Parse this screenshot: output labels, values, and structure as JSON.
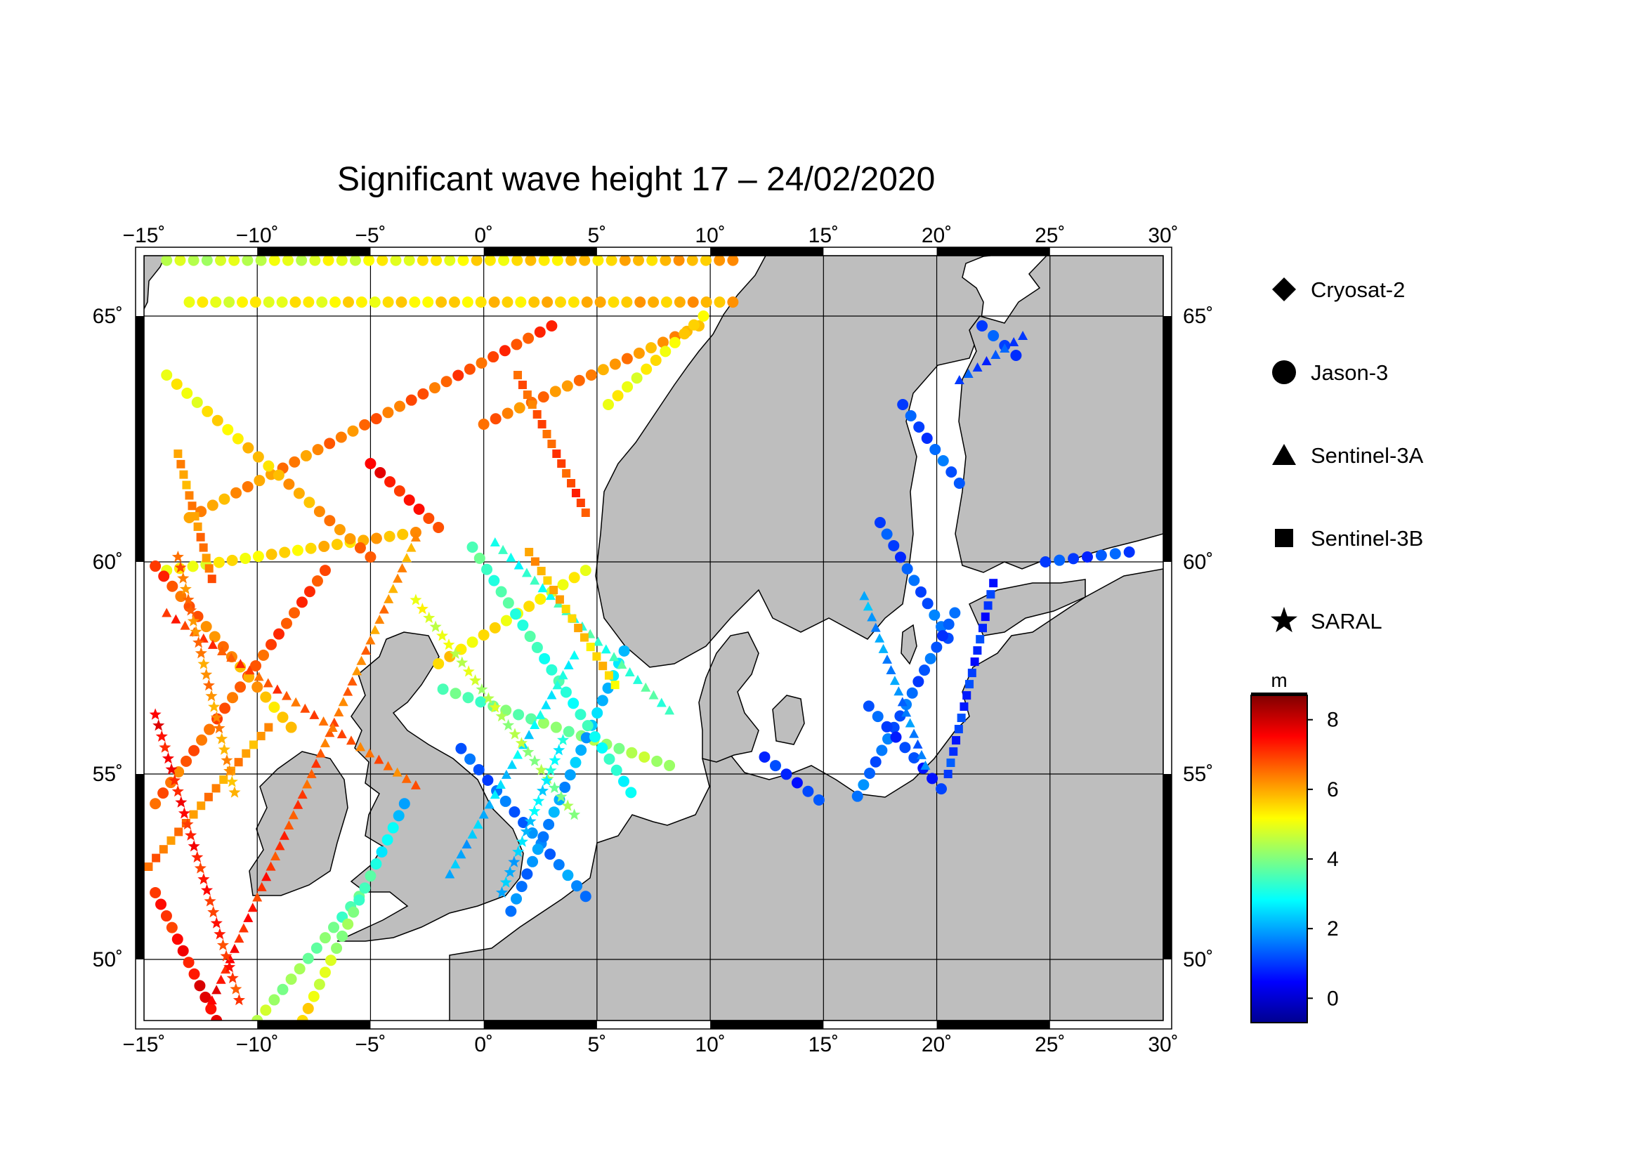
{
  "title": "Significant wave height 17 – 24/02/2020",
  "map": {
    "lon_range": [
      -15,
      30
    ],
    "lat_range": [
      48.5,
      66.3
    ],
    "lon_labels": [
      "−15˚",
      "−10˚",
      "−5˚",
      "0˚",
      "5˚",
      "10˚",
      "15˚",
      "20˚",
      "25˚",
      "30˚"
    ],
    "lon_values": [
      -15,
      -10,
      -5,
      0,
      5,
      10,
      15,
      20,
      25,
      30
    ],
    "lat_labels": [
      "65˚",
      "60˚",
      "55˚",
      "50˚"
    ],
    "lat_values": [
      65,
      60,
      55,
      50
    ],
    "land_color": "#bebebe",
    "sea_color": "#ffffff"
  },
  "legend": {
    "items": [
      {
        "label": "Cryosat-2",
        "icon": "diamond-icon"
      },
      {
        "label": "Jason-3",
        "icon": "circle-icon"
      },
      {
        "label": "Sentinel-3A",
        "icon": "triangle-icon"
      },
      {
        "label": "Sentinel-3B",
        "icon": "square-icon"
      },
      {
        "label": "SARAL",
        "icon": "star-icon"
      }
    ]
  },
  "colorbar": {
    "unit": "m",
    "min": -0.7,
    "max": 8.7,
    "tick_values": [
      0,
      2,
      4,
      6,
      8
    ],
    "tick_labels": [
      "0",
      "2",
      "4",
      "6",
      "8"
    ],
    "colormap": [
      "#00008f",
      "#0000ff",
      "#0080ff",
      "#00ffff",
      "#80ff80",
      "#ffff00",
      "#ff8000",
      "#ff0000",
      "#800000"
    ]
  },
  "tracks": [
    {
      "satellite": "Jason-3",
      "start": [
        -14,
        59.8
      ],
      "end": [
        -3,
        60.6
      ],
      "swh": [
        5,
        6
      ]
    },
    {
      "satellite": "Jason-3",
      "start": [
        -13,
        60.9
      ],
      "end": [
        3,
        64.8
      ],
      "swh": [
        6,
        7
      ]
    },
    {
      "satellite": "Jason-3",
      "start": [
        -14,
        63.8
      ],
      "end": [
        -5,
        60.1
      ],
      "swh": [
        5,
        6.5
      ]
    },
    {
      "satellite": "Jason-3",
      "start": [
        -14.5,
        54.2
      ],
      "end": [
        -7,
        59.8
      ],
      "swh": [
        6.5,
        7
      ]
    },
    {
      "satellite": "Jason-3",
      "start": [
        -14.5,
        59.9
      ],
      "end": [
        -8.5,
        56.1
      ],
      "swh": [
        7,
        5.5
      ]
    },
    {
      "satellite": "Jason-3",
      "start": [
        -14.5,
        51.8
      ],
      "end": [
        -11.8,
        48.5
      ],
      "swh": [
        7,
        7.8
      ]
    },
    {
      "satellite": "Jason-3",
      "start": [
        -10,
        48.5
      ],
      "end": [
        -5.5,
        51.7
      ],
      "swh": [
        4.5,
        3.5
      ]
    },
    {
      "satellite": "Jason-3",
      "start": [
        -8,
        48.5
      ],
      "end": [
        -3.5,
        54.2
      ],
      "swh": [
        5.5,
        2.2
      ]
    },
    {
      "satellite": "Jason-3",
      "start": [
        -2,
        57.6
      ],
      "end": [
        4.5,
        59.8
      ],
      "swh": [
        5.5,
        5
      ]
    },
    {
      "satellite": "Jason-3",
      "start": [
        -5,
        62
      ],
      "end": [
        -2,
        60.7
      ],
      "swh": [
        7.5,
        7
      ]
    },
    {
      "satellite": "Jason-3",
      "start": [
        -1.8,
        57
      ],
      "end": [
        8.2,
        55.2
      ],
      "swh": [
        3.5,
        4.5
      ]
    },
    {
      "satellite": "Jason-3",
      "start": [
        -1,
        55.6
      ],
      "end": [
        4.5,
        51.7
      ],
      "swh": [
        1.2,
        1.8
      ]
    },
    {
      "satellite": "Jason-3",
      "start": [
        1.2,
        51.3
      ],
      "end": [
        6.2,
        57.9
      ],
      "swh": [
        1.5,
        2.5
      ]
    },
    {
      "satellite": "Jason-3",
      "start": [
        -0.5,
        60.3
      ],
      "end": [
        6.5,
        54.5
      ],
      "swh": [
        3.5,
        3
      ]
    },
    {
      "satellite": "Jason-3",
      "start": [
        0,
        62.8
      ],
      "end": [
        9.5,
        64.8
      ],
      "swh": [
        6.5,
        6
      ]
    },
    {
      "satellite": "Jason-3",
      "start": [
        -14,
        66.2
      ],
      "end": [
        11,
        66.2
      ],
      "swh": [
        4.5,
        6
      ]
    },
    {
      "satellite": "Jason-3",
      "start": [
        -13,
        65.3
      ],
      "end": [
        11,
        65.3
      ],
      "swh": [
        5,
        6
      ]
    },
    {
      "satellite": "Jason-3",
      "start": [
        5.5,
        63.2
      ],
      "end": [
        9.7,
        65
      ],
      "swh": [
        5,
        5.5
      ]
    },
    {
      "satellite": "Jason-3",
      "start": [
        17.5,
        60.8
      ],
      "end": [
        20.5,
        58.2
      ],
      "swh": [
        1,
        1.5
      ]
    },
    {
      "satellite": "Jason-3",
      "start": [
        16.5,
        54.4
      ],
      "end": [
        20.8,
        58.8
      ],
      "swh": [
        1.5,
        1.2
      ]
    },
    {
      "satellite": "Jason-3",
      "start": [
        17,
        56.6
      ],
      "end": [
        20.2,
        54.6
      ],
      "swh": [
        1.2,
        0.8
      ]
    },
    {
      "satellite": "Jason-3",
      "start": [
        12.4,
        55.4
      ],
      "end": [
        14.8,
        54.3
      ],
      "swh": [
        0.8,
        1
      ]
    },
    {
      "satellite": "Jason-3",
      "start": [
        22,
        64.8
      ],
      "end": [
        23.5,
        64.2
      ],
      "swh": [
        1,
        1.2
      ]
    },
    {
      "satellite": "Jason-3",
      "start": [
        18.5,
        63.2
      ],
      "end": [
        21,
        61.6
      ],
      "swh": [
        1,
        1.5
      ]
    },
    {
      "satellite": "Jason-3",
      "start": [
        24.8,
        60
      ],
      "end": [
        28.5,
        60.2
      ],
      "swh": [
        1,
        1.2
      ]
    },
    {
      "satellite": "Sentinel-3A",
      "start": [
        -12,
        49
      ],
      "end": [
        -3,
        60.5
      ],
      "swh": [
        7.5,
        6
      ]
    },
    {
      "satellite": "Sentinel-3A",
      "start": [
        -14,
        58.8
      ],
      "end": [
        -3,
        54.7
      ],
      "swh": [
        7,
        6.5
      ]
    },
    {
      "satellite": "Sentinel-3A",
      "start": [
        -1.5,
        52.3
      ],
      "end": [
        4,
        57.8
      ],
      "swh": [
        2,
        3
      ]
    },
    {
      "satellite": "Sentinel-3A",
      "start": [
        0.5,
        60.4
      ],
      "end": [
        8.2,
        56.5
      ],
      "swh": [
        3,
        3.5
      ]
    },
    {
      "satellite": "Sentinel-3A",
      "start": [
        16.8,
        59.2
      ],
      "end": [
        19.5,
        55.2
      ],
      "swh": [
        2,
        1.5
      ]
    },
    {
      "satellite": "Sentinel-3A",
      "start": [
        21,
        63.7
      ],
      "end": [
        23.8,
        64.6
      ],
      "swh": [
        1,
        1.2
      ]
    },
    {
      "satellite": "Sentinel-3B",
      "start": [
        -14.8,
        52.5
      ],
      "end": [
        -9.5,
        56.1
      ],
      "swh": [
        6.5,
        6
      ]
    },
    {
      "satellite": "Sentinel-3B",
      "start": [
        -13.5,
        62.2
      ],
      "end": [
        -12,
        59.6
      ],
      "swh": [
        6,
        6.5
      ]
    },
    {
      "satellite": "Sentinel-3B",
      "start": [
        2,
        60.2
      ],
      "end": [
        5.8,
        57.1
      ],
      "swh": [
        6,
        5.5
      ]
    },
    {
      "satellite": "Sentinel-3B",
      "start": [
        1.5,
        63.8
      ],
      "end": [
        4.5,
        61
      ],
      "swh": [
        6.5,
        7
      ]
    },
    {
      "satellite": "Sentinel-3B",
      "start": [
        20.5,
        55
      ],
      "end": [
        22.5,
        59.5
      ],
      "swh": [
        1,
        0.8
      ]
    },
    {
      "satellite": "SARAL",
      "start": [
        -14.5,
        56.4
      ],
      "end": [
        -10.8,
        49
      ],
      "swh": [
        7.5,
        7
      ]
    },
    {
      "satellite": "SARAL",
      "start": [
        -13.5,
        60.1
      ],
      "end": [
        -11,
        54.5
      ],
      "swh": [
        6.5,
        6
      ]
    },
    {
      "satellite": "SARAL",
      "start": [
        -3,
        59.1
      ],
      "end": [
        4,
        53.9
      ],
      "swh": [
        5,
        4
      ]
    },
    {
      "satellite": "SARAL",
      "start": [
        0.8,
        51.8
      ],
      "end": [
        3.5,
        55.8
      ],
      "swh": [
        2,
        3
      ]
    }
  ]
}
